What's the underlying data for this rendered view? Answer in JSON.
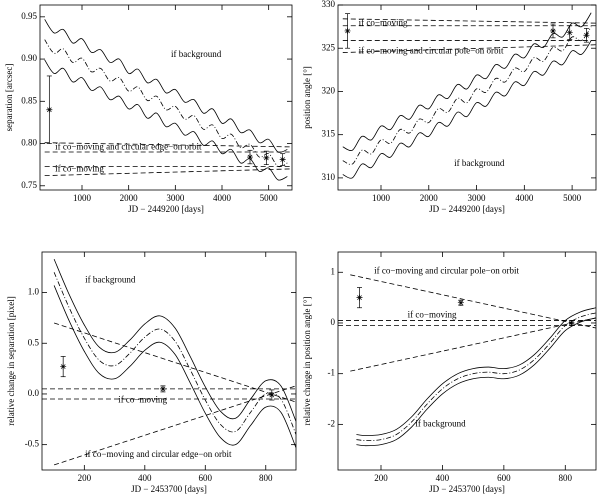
{
  "chart_data": [
    {
      "type": "line",
      "xlabel": "JD − 2449200 [days]",
      "ylabel": "separation [arcsec]",
      "xlim": [
        100,
        5500
      ],
      "xticks": [
        1000,
        2000,
        3000,
        4000,
        5000
      ],
      "ylim": [
        0.745,
        0.964
      ],
      "yticks": [
        {
          "value": 0.75,
          "label": "0.75"
        },
        {
          "value": 0.8,
          "label": "0.80"
        },
        {
          "value": 0.85,
          "label": "0.85"
        },
        {
          "value": 0.9,
          "label": "0.90"
        },
        {
          "value": 0.95,
          "label": "0.95"
        }
      ],
      "series": [
        {
          "style": "dashdot",
          "x": [
            200,
            400,
            600,
            800,
            1000,
            1200,
            1400,
            1600,
            1800,
            2000,
            2200,
            2400,
            2600,
            2800,
            3000,
            3200,
            3400,
            3600,
            3800,
            4000,
            4200,
            4400,
            4600,
            4800,
            5000,
            5200,
            5400
          ],
          "values": [
            0.923,
            0.907,
            0.912,
            0.896,
            0.901,
            0.885,
            0.889,
            0.874,
            0.878,
            0.862,
            0.867,
            0.851,
            0.856,
            0.84,
            0.844,
            0.829,
            0.833,
            0.817,
            0.822,
            0.806,
            0.811,
            0.795,
            0.799,
            0.784,
            0.788,
            0.773,
            0.777
          ]
        },
        {
          "style": "solid",
          "x": [
            200,
            400,
            600,
            800,
            1000,
            1200,
            1400,
            1600,
            1800,
            2000,
            2200,
            2400,
            2600,
            2800,
            3000,
            3200,
            3400,
            3600,
            3800,
            4000,
            4200,
            4400,
            4600,
            4800,
            5000,
            5200,
            5400
          ],
          "values": [
            0.947,
            0.931,
            0.935,
            0.919,
            0.924,
            0.908,
            0.911,
            0.896,
            0.9,
            0.883,
            0.888,
            0.872,
            0.876,
            0.86,
            0.864,
            0.849,
            0.852,
            0.836,
            0.841,
            0.824,
            0.829,
            0.813,
            0.816,
            0.801,
            0.805,
            0.79,
            0.793
          ]
        },
        {
          "style": "solid",
          "x": [
            200,
            400,
            600,
            800,
            1000,
            1200,
            1400,
            1600,
            1800,
            2000,
            2200,
            2400,
            2600,
            2800,
            3000,
            3200,
            3400,
            3600,
            3800,
            4000,
            4200,
            4400,
            4600,
            4800,
            5000,
            5200,
            5400
          ],
          "values": [
            0.899,
            0.883,
            0.889,
            0.873,
            0.878,
            0.863,
            0.867,
            0.852,
            0.856,
            0.841,
            0.846,
            0.83,
            0.836,
            0.82,
            0.824,
            0.81,
            0.814,
            0.798,
            0.803,
            0.788,
            0.793,
            0.777,
            0.782,
            0.767,
            0.771,
            0.757,
            0.761
          ]
        },
        {
          "style": "dashed",
          "x": [
            200,
            5500
          ],
          "values": [
            0.79,
            0.79
          ]
        },
        {
          "style": "dashed",
          "x": [
            200,
            5500
          ],
          "values": [
            0.773,
            0.773
          ]
        },
        {
          "style": "dashed",
          "x": [
            200,
            5500
          ],
          "values": [
            0.801,
            0.796
          ]
        },
        {
          "style": "dashed",
          "x": [
            200,
            5500
          ],
          "values": [
            0.762,
            0.77
          ]
        }
      ],
      "points": {
        "x": [
          300,
          4600,
          4950,
          5300
        ],
        "values": [
          0.84,
          0.784,
          0.783,
          0.781
        ],
        "errors": [
          0.04,
          0.008,
          0.008,
          0.007
        ]
      },
      "annotations": [
        "if background",
        "if co−moving and circular edge−on orbit",
        "if co−moving"
      ]
    },
    {
      "type": "line",
      "xlabel": "JD − 2449200 [days]",
      "ylabel": "position angle [°]",
      "xlim": [
        100,
        5500
      ],
      "xticks": [
        1000,
        2000,
        3000,
        4000,
        5000
      ],
      "ylim": [
        308.6,
        330
      ],
      "yticks": [
        310,
        315,
        320,
        325,
        330
      ],
      "series": [
        {
          "style": "dashdot",
          "x": [
            200,
            400,
            600,
            800,
            1000,
            1200,
            1400,
            1600,
            1800,
            2000,
            2200,
            2400,
            2600,
            2800,
            3000,
            3200,
            3400,
            3600,
            3800,
            4000,
            4200,
            4400,
            4600,
            4800,
            5000,
            5200,
            5400
          ],
          "values": [
            312.0,
            311.6,
            313.2,
            312.8,
            314.4,
            314.0,
            315.6,
            315.2,
            316.8,
            316.4,
            318.0,
            317.6,
            319.2,
            318.7,
            320.3,
            319.9,
            321.5,
            321.1,
            322.7,
            322.3,
            323.9,
            323.5,
            325.1,
            324.7,
            326.3,
            325.9,
            327.5
          ]
        },
        {
          "style": "solid",
          "x": [
            200,
            400,
            600,
            800,
            1000,
            1200,
            1400,
            1600,
            1800,
            2000,
            2200,
            2400,
            2600,
            2800,
            3000,
            3200,
            3400,
            3600,
            3800,
            4000,
            4200,
            4400,
            4600,
            4800,
            5000,
            5200,
            5400
          ],
          "values": [
            313.6,
            313.2,
            314.8,
            314.4,
            316.0,
            315.6,
            317.2,
            316.8,
            318.4,
            318.0,
            319.6,
            319.2,
            320.8,
            320.3,
            321.9,
            321.5,
            323.1,
            322.7,
            324.3,
            323.9,
            325.5,
            325.1,
            326.7,
            326.3,
            327.9,
            327.5,
            329.1
          ]
        },
        {
          "style": "solid",
          "x": [
            200,
            400,
            600,
            800,
            1000,
            1200,
            1400,
            1600,
            1800,
            2000,
            2200,
            2400,
            2600,
            2800,
            3000,
            3200,
            3400,
            3600,
            3800,
            4000,
            4200,
            4400,
            4600,
            4800,
            5000,
            5200,
            5400
          ],
          "values": [
            310.4,
            310.0,
            311.6,
            311.2,
            312.8,
            312.4,
            314.0,
            313.6,
            315.2,
            314.8,
            316.4,
            316.0,
            317.6,
            317.1,
            318.7,
            318.3,
            319.9,
            319.5,
            321.1,
            320.7,
            322.3,
            321.9,
            323.5,
            323.1,
            324.7,
            324.3,
            325.9
          ]
        },
        {
          "style": "dashed",
          "x": [
            200,
            5500
          ],
          "values": [
            327.6,
            327.6
          ]
        },
        {
          "style": "dashed",
          "x": [
            200,
            5500
          ],
          "values": [
            325.9,
            325.9
          ]
        },
        {
          "style": "dashed",
          "x": [
            200,
            5500
          ],
          "values": [
            328.4,
            327.9
          ]
        },
        {
          "style": "dashed",
          "x": [
            200,
            5500
          ],
          "values": [
            324.5,
            325.4
          ]
        }
      ],
      "points": {
        "x": [
          300,
          4600,
          4950,
          5300
        ],
        "values": [
          327.0,
          327.0,
          326.8,
          326.5
        ],
        "errors": [
          2.0,
          0.8,
          0.8,
          0.8
        ]
      },
      "annotations": [
        "if co−moving",
        "if co−moving and circular pole−on orbit",
        "if background"
      ]
    },
    {
      "type": "line",
      "xlabel": "JD − 2453700 [days]",
      "ylabel": "relative change in separation [pixel]",
      "xlim": [
        60,
        900
      ],
      "xticks": [
        200,
        400,
        600,
        800
      ],
      "ylim": [
        -0.75,
        1.4
      ],
      "yticks": [
        -0.5,
        {
          "value": 0,
          "label": "0.0"
        },
        0.5,
        {
          "value": 1,
          "label": "1.0"
        }
      ],
      "series": [
        {
          "style": "dashdot",
          "x": [
            100,
            150,
            200,
            250,
            300,
            350,
            400,
            450,
            500,
            550,
            600,
            650,
            700,
            750,
            800,
            850,
            900
          ],
          "values": [
            1.2,
            0.85,
            0.55,
            0.33,
            0.28,
            0.4,
            0.56,
            0.64,
            0.52,
            0.24,
            -0.06,
            -0.3,
            -0.37,
            -0.18,
            0.0,
            -0.05,
            -0.4
          ]
        },
        {
          "style": "solid",
          "x": [
            100,
            150,
            200,
            250,
            300,
            350,
            400,
            450,
            500,
            550,
            600,
            650,
            700,
            750,
            800,
            850,
            900
          ],
          "values": [
            1.33,
            0.98,
            0.68,
            0.46,
            0.41,
            0.53,
            0.69,
            0.77,
            0.65,
            0.37,
            0.07,
            -0.17,
            -0.24,
            -0.05,
            0.13,
            0.08,
            -0.27
          ]
        },
        {
          "style": "solid",
          "x": [
            100,
            150,
            200,
            250,
            300,
            350,
            400,
            450,
            500,
            550,
            600,
            650,
            700,
            750,
            800,
            850,
            900
          ],
          "values": [
            1.07,
            0.72,
            0.42,
            0.2,
            0.15,
            0.27,
            0.43,
            0.51,
            0.39,
            0.11,
            -0.19,
            -0.43,
            -0.5,
            -0.31,
            -0.13,
            -0.18,
            -0.53
          ]
        },
        {
          "style": "dashed",
          "x": [
            60,
            900
          ],
          "values": [
            0.05,
            0.05
          ]
        },
        {
          "style": "dashed",
          "x": [
            60,
            900
          ],
          "values": [
            -0.05,
            -0.05
          ]
        },
        {
          "style": "dashed",
          "x": [
            100,
            900
          ],
          "values": [
            0.7,
            -0.08
          ]
        },
        {
          "style": "dashed",
          "x": [
            100,
            900
          ],
          "values": [
            -0.7,
            0.08
          ]
        }
      ],
      "points": {
        "x": [
          130,
          460,
          820
        ],
        "values": [
          0.27,
          0.05,
          -0.01
        ],
        "errors": [
          0.1,
          0.03,
          0.05
        ]
      },
      "annotations": [
        "if background",
        "if co−moving",
        "if co−moving and circular edge−on orbit"
      ]
    },
    {
      "type": "line",
      "xlabel": "JD − 2453700 [days]",
      "ylabel": "relative change in position angle [°]",
      "xlim": [
        60,
        900
      ],
      "xticks": [
        200,
        400,
        600,
        800
      ],
      "ylim": [
        -2.9,
        1.4
      ],
      "yticks": [
        -2,
        -1,
        0,
        1
      ],
      "series": [
        {
          "style": "dashdot",
          "x": [
            120,
            150,
            200,
            250,
            300,
            350,
            400,
            450,
            500,
            550,
            600,
            650,
            700,
            750,
            800,
            850,
            900
          ],
          "values": [
            -2.3,
            -2.32,
            -2.3,
            -2.2,
            -1.95,
            -1.6,
            -1.3,
            -1.1,
            -1.0,
            -0.97,
            -1.0,
            -0.93,
            -0.72,
            -0.4,
            -0.05,
            0.12,
            0.2
          ]
        },
        {
          "style": "solid",
          "x": [
            120,
            150,
            200,
            250,
            300,
            350,
            400,
            450,
            500,
            550,
            600,
            650,
            700,
            750,
            800,
            850,
            900
          ],
          "values": [
            -2.2,
            -2.22,
            -2.2,
            -2.1,
            -1.85,
            -1.5,
            -1.2,
            -1.0,
            -0.9,
            -0.87,
            -0.9,
            -0.83,
            -0.62,
            -0.3,
            0.05,
            0.22,
            0.3
          ]
        },
        {
          "style": "solid",
          "x": [
            120,
            150,
            200,
            250,
            300,
            350,
            400,
            450,
            500,
            550,
            600,
            650,
            700,
            750,
            800,
            850,
            900
          ],
          "values": [
            -2.4,
            -2.42,
            -2.4,
            -2.3,
            -2.05,
            -1.7,
            -1.4,
            -1.2,
            -1.1,
            -1.07,
            -1.1,
            -1.03,
            -0.82,
            -0.5,
            -0.15,
            0.02,
            0.1
          ]
        },
        {
          "style": "dashed",
          "x": [
            60,
            900
          ],
          "values": [
            0.05,
            0.05
          ]
        },
        {
          "style": "dashed",
          "x": [
            60,
            900
          ],
          "values": [
            -0.05,
            -0.05
          ]
        },
        {
          "style": "dashed",
          "x": [
            100,
            900
          ],
          "values": [
            0.95,
            -0.1
          ]
        },
        {
          "style": "dashed",
          "x": [
            100,
            900
          ],
          "values": [
            -0.95,
            0.1
          ]
        }
      ],
      "points": {
        "x": [
          130,
          460,
          820
        ],
        "values": [
          0.5,
          0.4,
          0.0
        ],
        "errors": [
          0.2,
          0.05,
          0.05
        ]
      },
      "annotations": [
        "if co−moving and circular pole−on orbit",
        "if co−moving",
        "if background"
      ]
    }
  ]
}
